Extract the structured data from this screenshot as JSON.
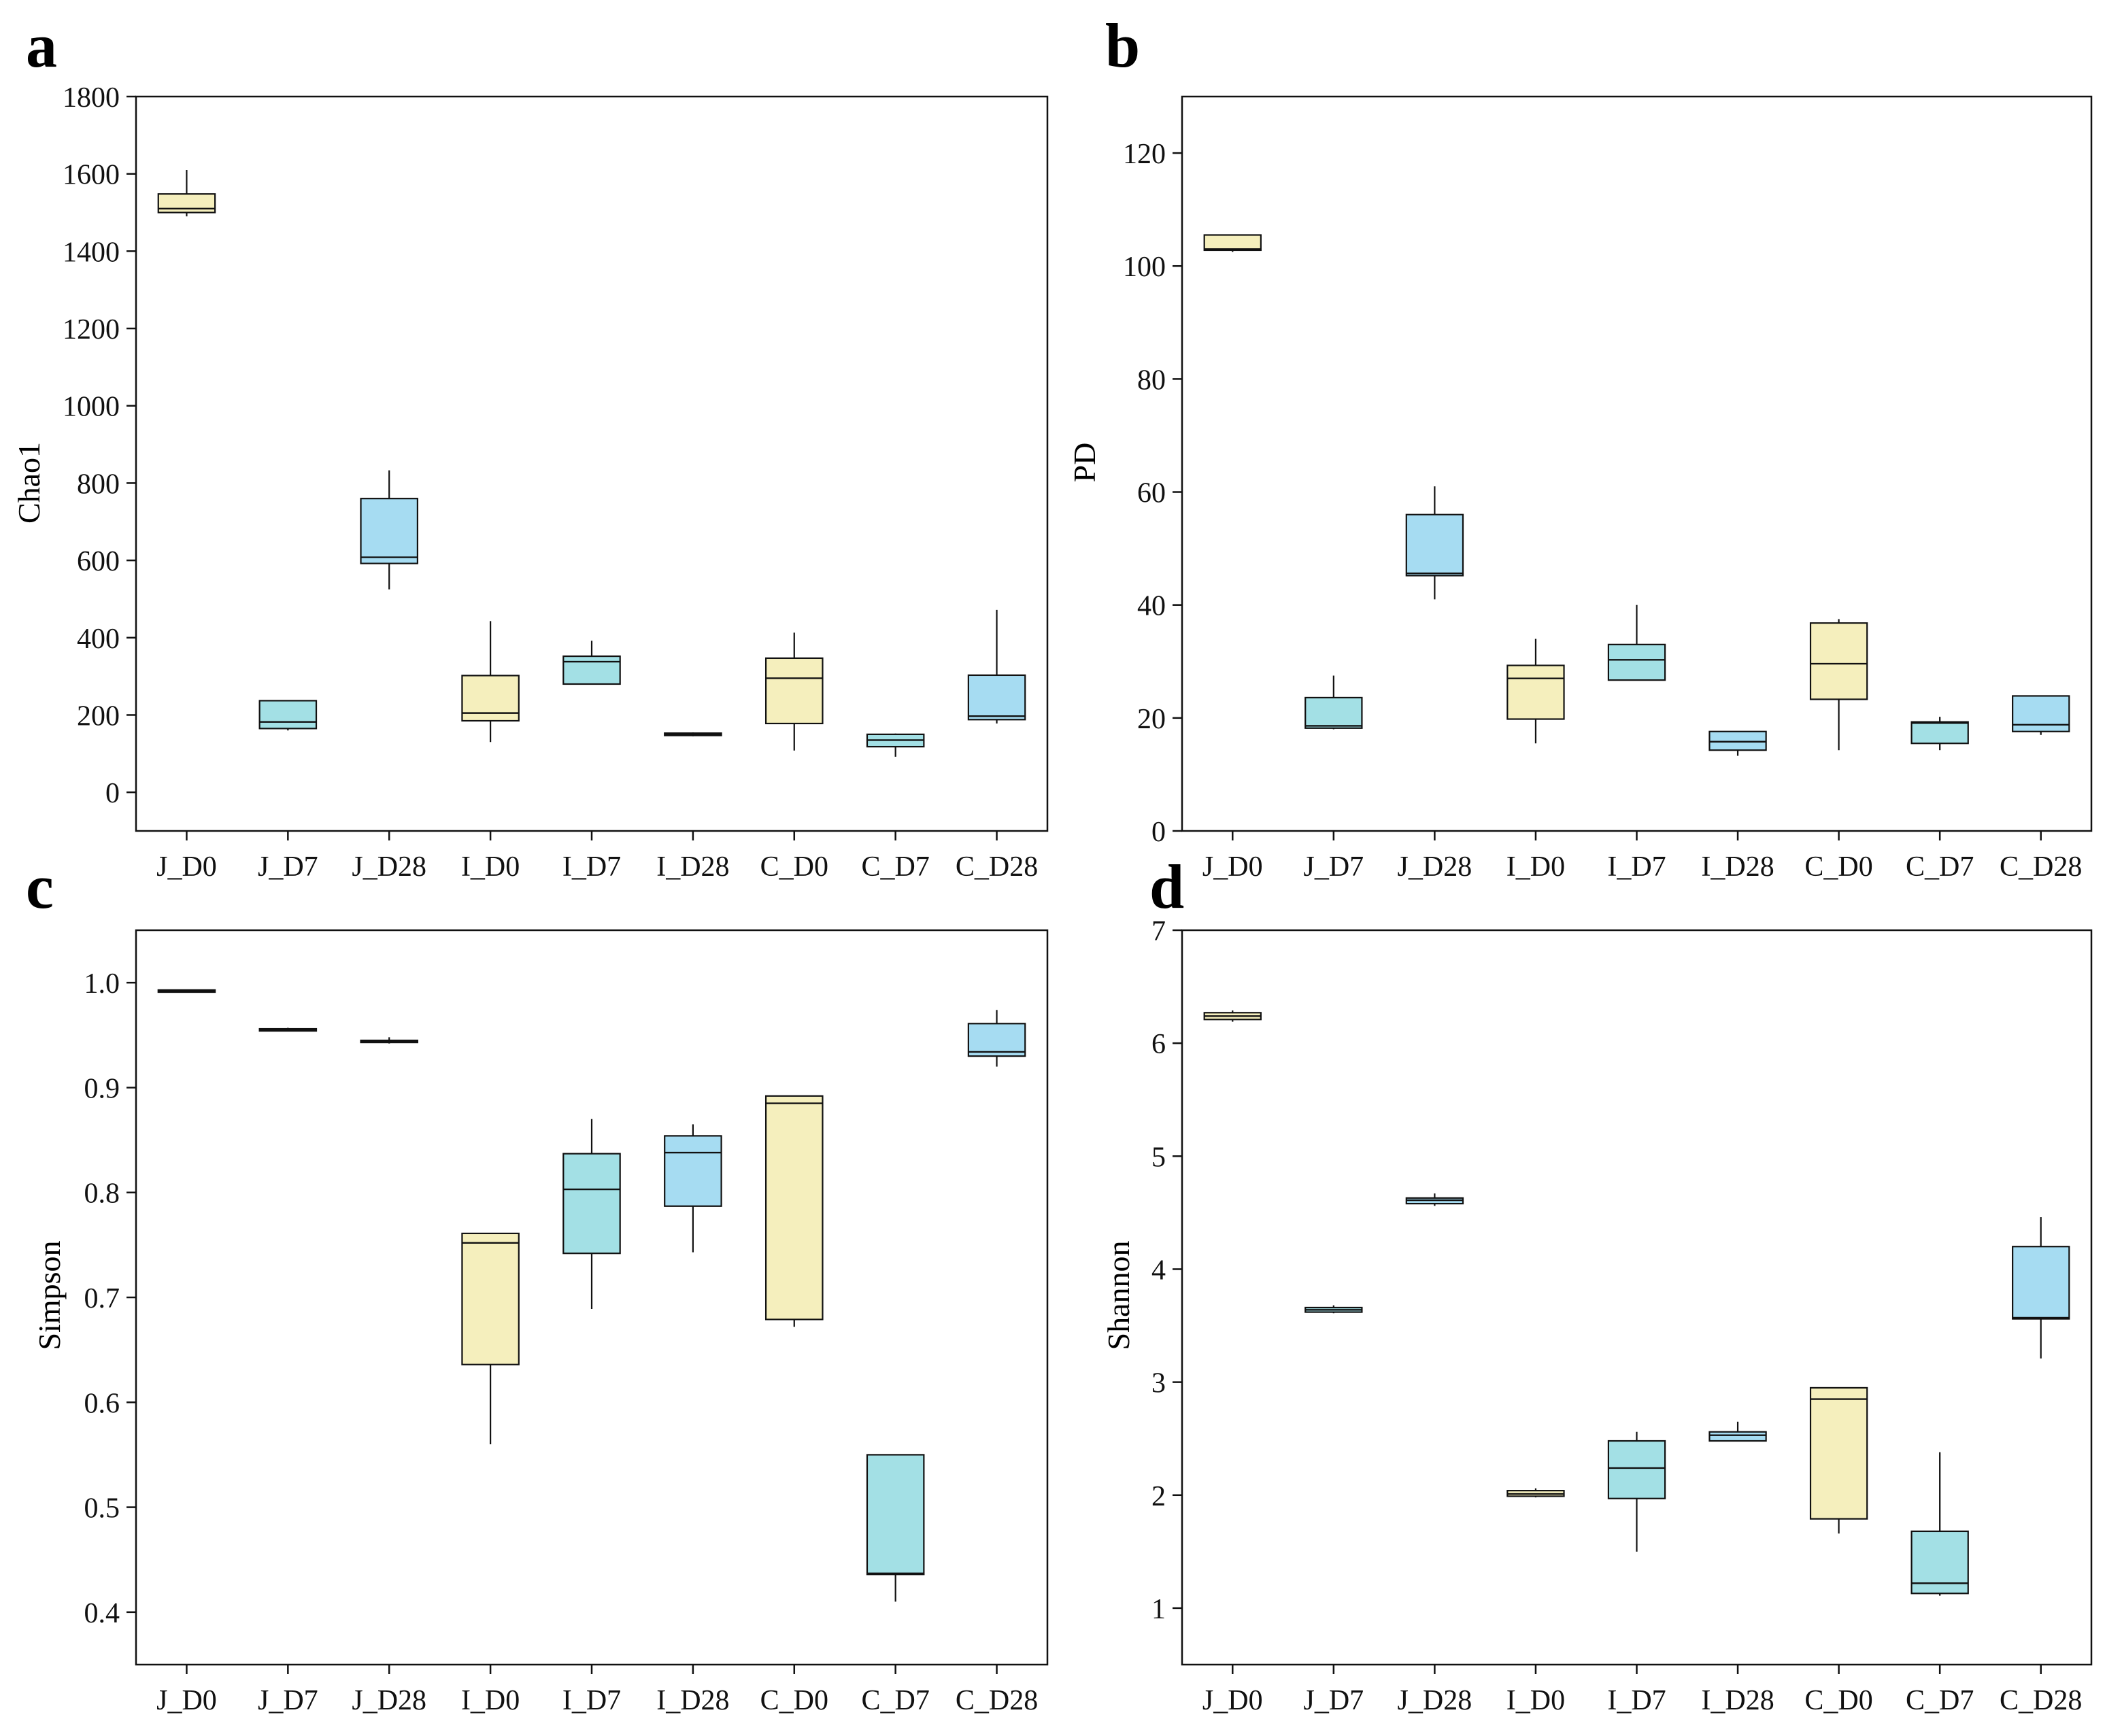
{
  "colors": {
    "yellow": "#f5efbd",
    "teal": "#a3e0e5",
    "blue": "#a6dcf2",
    "stroke": "#111111"
  },
  "chart_data": [
    {
      "panel": "a",
      "type": "box",
      "ylabel": "Chao1",
      "xlabel": "",
      "ylim": [
        -100,
        1800
      ],
      "yticks": [
        0,
        200,
        400,
        600,
        800,
        1000,
        1200,
        1400,
        1600,
        1800
      ],
      "tick_decimals": 0,
      "categories": [
        "J_D0",
        "J_D7",
        "J_D28",
        "I_D0",
        "I_D7",
        "I_D28",
        "C_D0",
        "C_D7",
        "C_D28"
      ],
      "boxes": [
        {
          "category": "J_D0",
          "min": 1490,
          "q1": 1500,
          "median": 1510,
          "q3": 1548,
          "max": 1610,
          "color": "yellow"
        },
        {
          "category": "J_D7",
          "min": 160,
          "q1": 165,
          "median": 182,
          "q3": 237,
          "max": 237,
          "color": "teal"
        },
        {
          "category": "J_D28",
          "min": 525,
          "q1": 592,
          "median": 608,
          "q3": 760,
          "max": 833,
          "color": "blue"
        },
        {
          "category": "I_D0",
          "min": 130,
          "q1": 185,
          "median": 205,
          "q3": 302,
          "max": 443,
          "color": "yellow"
        },
        {
          "category": "I_D7",
          "min": 280,
          "q1": 280,
          "median": 338,
          "q3": 352,
          "max": 392,
          "color": "teal"
        },
        {
          "category": "I_D28",
          "min": 145,
          "q1": 147,
          "median": 150,
          "q3": 153,
          "max": 155,
          "color": "blue"
        },
        {
          "category": "C_D0",
          "min": 108,
          "q1": 178,
          "median": 295,
          "q3": 347,
          "max": 413,
          "color": "yellow"
        },
        {
          "category": "C_D7",
          "min": 92,
          "q1": 118,
          "median": 135,
          "q3": 150,
          "max": 152,
          "color": "teal"
        },
        {
          "category": "C_D28",
          "min": 178,
          "q1": 188,
          "median": 197,
          "q3": 303,
          "max": 472,
          "color": "blue"
        }
      ]
    },
    {
      "panel": "b",
      "type": "box",
      "ylabel": "PD",
      "xlabel": "",
      "ylim": [
        0,
        130
      ],
      "yticks": [
        0,
        20,
        40,
        60,
        80,
        100,
        120
      ],
      "tick_decimals": 0,
      "categories": [
        "J_D0",
        "J_D7",
        "J_D28",
        "I_D0",
        "I_D7",
        "I_D28",
        "C_D0",
        "C_D7",
        "C_D28"
      ],
      "boxes": [
        {
          "category": "J_D0",
          "min": 102.5,
          "q1": 102.8,
          "median": 103.0,
          "q3": 105.5,
          "max": 105.5,
          "color": "yellow"
        },
        {
          "category": "J_D7",
          "min": 18,
          "q1": 18.2,
          "median": 18.6,
          "q3": 23.6,
          "max": 27.5,
          "color": "teal"
        },
        {
          "category": "J_D28",
          "min": 41,
          "q1": 45.2,
          "median": 45.6,
          "q3": 56,
          "max": 61,
          "color": "blue"
        },
        {
          "category": "I_D0",
          "min": 15.5,
          "q1": 19.8,
          "median": 27,
          "q3": 29.3,
          "max": 34,
          "color": "yellow"
        },
        {
          "category": "I_D7",
          "min": 26.7,
          "q1": 26.7,
          "median": 30.3,
          "q3": 33,
          "max": 40,
          "color": "teal"
        },
        {
          "category": "I_D28",
          "min": 13.3,
          "q1": 14.3,
          "median": 15.8,
          "q3": 17.6,
          "max": 17.6,
          "color": "blue"
        },
        {
          "category": "C_D0",
          "min": 14.3,
          "q1": 23.3,
          "median": 29.6,
          "q3": 36.8,
          "max": 37.5,
          "color": "yellow"
        },
        {
          "category": "C_D7",
          "min": 14.3,
          "q1": 15.5,
          "median": 19.1,
          "q3": 19.3,
          "max": 20.2,
          "color": "teal"
        },
        {
          "category": "C_D28",
          "min": 17,
          "q1": 17.6,
          "median": 18.8,
          "q3": 23.9,
          "max": 23.9,
          "color": "blue"
        }
      ]
    },
    {
      "panel": "c",
      "type": "box",
      "ylabel": "Simpson",
      "xlabel": "",
      "ylim": [
        0.35,
        1.05
      ],
      "yticks": [
        0.4,
        0.5,
        0.6,
        0.7,
        0.8,
        0.9,
        1.0
      ],
      "tick_decimals": 1,
      "categories": [
        "J_D0",
        "J_D7",
        "J_D28",
        "I_D0",
        "I_D7",
        "I_D28",
        "C_D0",
        "C_D7",
        "C_D28"
      ],
      "boxes": [
        {
          "category": "J_D0",
          "min": 0.991,
          "q1": 0.991,
          "median": 0.992,
          "q3": 0.993,
          "max": 0.993,
          "color": "yellow"
        },
        {
          "category": "J_D7",
          "min": 0.954,
          "q1": 0.954,
          "median": 0.955,
          "q3": 0.956,
          "max": 0.957,
          "color": "teal"
        },
        {
          "category": "J_D28",
          "min": 0.942,
          "q1": 0.943,
          "median": 0.944,
          "q3": 0.945,
          "max": 0.948,
          "color": "blue"
        },
        {
          "category": "I_D0",
          "min": 0.56,
          "q1": 0.636,
          "median": 0.752,
          "q3": 0.761,
          "max": 0.761,
          "color": "yellow"
        },
        {
          "category": "I_D7",
          "min": 0.689,
          "q1": 0.742,
          "median": 0.803,
          "q3": 0.837,
          "max": 0.87,
          "color": "teal"
        },
        {
          "category": "I_D28",
          "min": 0.743,
          "q1": 0.787,
          "median": 0.838,
          "q3": 0.854,
          "max": 0.865,
          "color": "blue"
        },
        {
          "category": "C_D0",
          "min": 0.672,
          "q1": 0.679,
          "median": 0.885,
          "q3": 0.892,
          "max": 0.892,
          "color": "yellow"
        },
        {
          "category": "C_D7",
          "min": 0.41,
          "q1": 0.436,
          "median": 0.437,
          "q3": 0.55,
          "max": 0.55,
          "color": "teal"
        },
        {
          "category": "C_D28",
          "min": 0.92,
          "q1": 0.93,
          "median": 0.934,
          "q3": 0.961,
          "max": 0.974,
          "color": "blue"
        }
      ]
    },
    {
      "panel": "d",
      "type": "box",
      "ylabel": "Shannon",
      "xlabel": "",
      "ylim": [
        0.5,
        7
      ],
      "yticks": [
        1,
        2,
        3,
        4,
        5,
        6,
        7
      ],
      "tick_decimals": 0,
      "categories": [
        "J_D0",
        "J_D7",
        "J_D28",
        "I_D0",
        "I_D7",
        "I_D28",
        "C_D0",
        "C_D7",
        "C_D28"
      ],
      "boxes": [
        {
          "category": "J_D0",
          "min": 6.19,
          "q1": 6.21,
          "median": 6.24,
          "q3": 6.27,
          "max": 6.29,
          "color": "yellow"
        },
        {
          "category": "J_D7",
          "min": 3.61,
          "q1": 3.62,
          "median": 3.64,
          "q3": 3.66,
          "max": 3.68,
          "color": "teal"
        },
        {
          "category": "J_D28",
          "min": 4.56,
          "q1": 4.58,
          "median": 4.61,
          "q3": 4.63,
          "max": 4.67,
          "color": "blue"
        },
        {
          "category": "I_D0",
          "min": 1.98,
          "q1": 1.99,
          "median": 2.01,
          "q3": 2.04,
          "max": 2.06,
          "color": "yellow"
        },
        {
          "category": "I_D7",
          "min": 1.5,
          "q1": 1.97,
          "median": 2.24,
          "q3": 2.48,
          "max": 2.56,
          "color": "teal"
        },
        {
          "category": "I_D28",
          "min": 2.48,
          "q1": 2.48,
          "median": 2.53,
          "q3": 2.56,
          "max": 2.65,
          "color": "blue"
        },
        {
          "category": "C_D0",
          "min": 1.66,
          "q1": 1.79,
          "median": 2.85,
          "q3": 2.95,
          "max": 2.95,
          "color": "yellow"
        },
        {
          "category": "C_D7",
          "min": 1.11,
          "q1": 1.13,
          "median": 1.22,
          "q3": 1.68,
          "max": 2.38,
          "color": "teal"
        },
        {
          "category": "C_D28",
          "min": 3.21,
          "q1": 3.56,
          "median": 3.57,
          "q3": 4.2,
          "max": 4.46,
          "color": "blue"
        }
      ]
    }
  ]
}
